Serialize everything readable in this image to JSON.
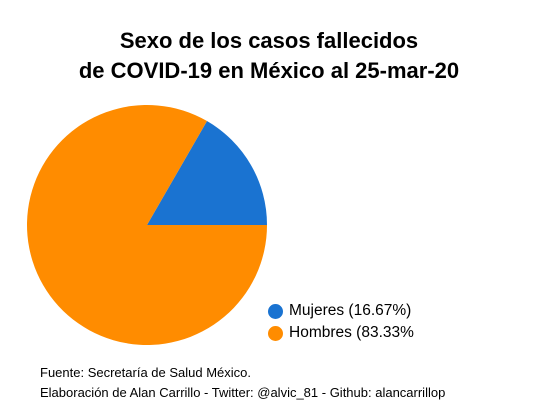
{
  "title_lines": [
    "Sexo de los casos fallecidos",
    "de COVID-19 en México al 25-mar-20"
  ],
  "chart_data": {
    "type": "pie",
    "title": "Sexo de los casos fallecidos de COVID-19 en México al 25-mar-20",
    "slices": [
      {
        "label": "Mujeres (16.67%)",
        "value": 16.67,
        "color": "#1a73d1"
      },
      {
        "label": "Hombres (83.33%",
        "value": 83.33,
        "color": "#ff8c00"
      }
    ],
    "legend_position": "bottom-right"
  },
  "footer": {
    "source": "Fuente: Secretaría de Salud México.",
    "credit": "Elaboración de Alan Carrillo - Twitter: @alvic_81 - Github: alancarrillop"
  }
}
